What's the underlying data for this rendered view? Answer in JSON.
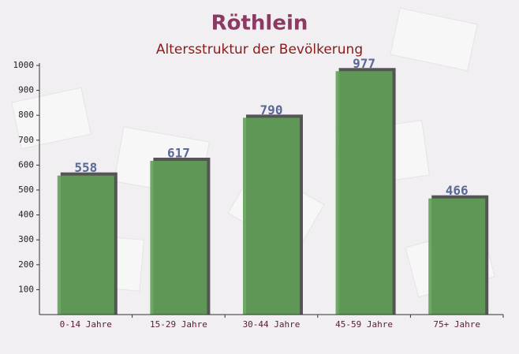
{
  "chart_data": {
    "type": "bar",
    "title": "Röthlein",
    "subtitle": "Altersstruktur der Bevölkerung",
    "categories": [
      "0-14 Jahre",
      "15-29 Jahre",
      "30-44 Jahre",
      "45-59 Jahre",
      "75+ Jahre"
    ],
    "values": [
      558,
      617,
      790,
      977,
      466
    ],
    "color": "#5f9e56",
    "ylim": [
      0,
      1000
    ],
    "yticks": [
      100,
      200,
      300,
      400,
      500,
      600,
      700,
      800,
      900,
      1000
    ]
  }
}
